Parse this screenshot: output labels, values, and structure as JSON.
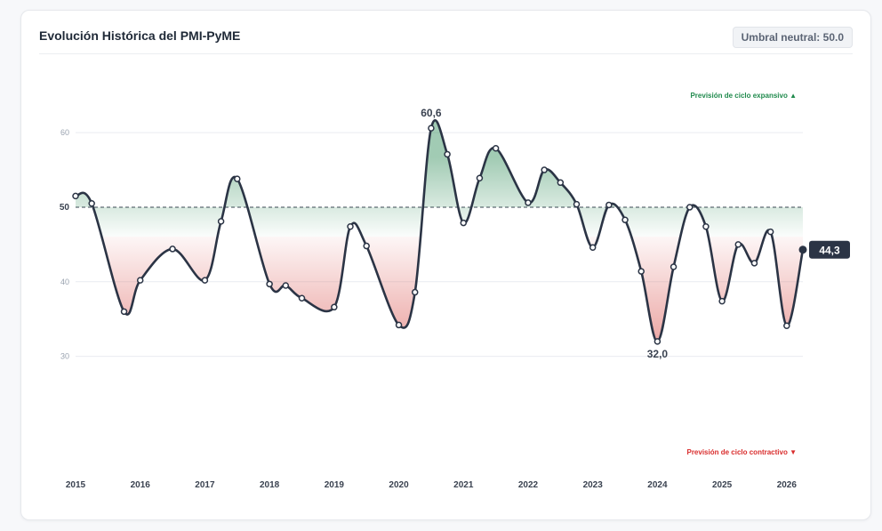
{
  "header": {
    "title": "Evolución Histórica del PMI-PyME",
    "badge": "Umbral neutral: 50.0"
  },
  "annotations": {
    "expansive_note": "Previsión de ciclo expansivo ▲",
    "contractive_note": "Previsión de ciclo contractivo ▼",
    "max_label": "60,6",
    "min_label": "32,0",
    "last_label": "44,3"
  },
  "colors": {
    "line": "#2b3445",
    "positive_fill": "#2e8b57",
    "negative_fill": "#d9534f",
    "expansive_text": "#1f8a4c",
    "contractive_text": "#d92c2c",
    "threshold": "#3a4250"
  },
  "chart_data": {
    "type": "area",
    "title": "Evolución Histórica del PMI-PyME",
    "xlabel": "",
    "ylabel": "",
    "threshold": 50,
    "xlim": [
      2015,
      2026.25
    ],
    "ylim": [
      16,
      76
    ],
    "y_ticks": [
      {
        "value": 60,
        "label": "60"
      },
      {
        "value": 50,
        "label": "50"
      },
      {
        "value": 40,
        "label": "40"
      },
      {
        "value": 30,
        "label": "30"
      }
    ],
    "x_ticks": [
      {
        "value": 2015,
        "label": "2015"
      },
      {
        "value": 2016,
        "label": "2016"
      },
      {
        "value": 2017,
        "label": "2017"
      },
      {
        "value": 2018,
        "label": "2018"
      },
      {
        "value": 2019,
        "label": "2019"
      },
      {
        "value": 2020,
        "label": "2020"
      },
      {
        "value": 2021,
        "label": "2021"
      },
      {
        "value": 2022,
        "label": "2022"
      },
      {
        "value": 2023,
        "label": "2023"
      },
      {
        "value": 2024,
        "label": "2024"
      },
      {
        "value": 2025,
        "label": "2025"
      },
      {
        "value": 2026,
        "label": "2026"
      }
    ],
    "grid": true,
    "points": [
      {
        "x": 2015.0,
        "y": 51.5
      },
      {
        "x": 2015.25,
        "y": 50.5
      },
      {
        "x": 2015.75,
        "y": 36.0
      },
      {
        "x": 2016.0,
        "y": 40.2
      },
      {
        "x": 2016.5,
        "y": 44.4
      },
      {
        "x": 2017.0,
        "y": 40.2
      },
      {
        "x": 2017.25,
        "y": 48.1
      },
      {
        "x": 2017.5,
        "y": 53.8
      },
      {
        "x": 2018.0,
        "y": 39.7
      },
      {
        "x": 2018.25,
        "y": 39.5
      },
      {
        "x": 2018.5,
        "y": 37.8
      },
      {
        "x": 2019.0,
        "y": 36.6
      },
      {
        "x": 2019.25,
        "y": 47.4
      },
      {
        "x": 2019.5,
        "y": 44.8
      },
      {
        "x": 2020.0,
        "y": 34.2
      },
      {
        "x": 2020.25,
        "y": 38.6
      },
      {
        "x": 2020.5,
        "y": 60.6
      },
      {
        "x": 2020.75,
        "y": 57.1
      },
      {
        "x": 2021.0,
        "y": 47.9
      },
      {
        "x": 2021.25,
        "y": 53.9
      },
      {
        "x": 2021.5,
        "y": 57.9
      },
      {
        "x": 2022.0,
        "y": 50.6
      },
      {
        "x": 2022.25,
        "y": 55.0
      },
      {
        "x": 2022.5,
        "y": 53.3
      },
      {
        "x": 2022.75,
        "y": 50.4
      },
      {
        "x": 2023.0,
        "y": 44.6
      },
      {
        "x": 2023.25,
        "y": 50.3
      },
      {
        "x": 2023.5,
        "y": 48.3
      },
      {
        "x": 2023.75,
        "y": 41.4
      },
      {
        "x": 2024.0,
        "y": 32.0
      },
      {
        "x": 2024.25,
        "y": 42.0
      },
      {
        "x": 2024.5,
        "y": 50.0
      },
      {
        "x": 2024.75,
        "y": 47.4
      },
      {
        "x": 2025.0,
        "y": 37.4
      },
      {
        "x": 2025.25,
        "y": 45.0
      },
      {
        "x": 2025.5,
        "y": 42.5
      },
      {
        "x": 2025.75,
        "y": 46.7
      },
      {
        "x": 2026.0,
        "y": 34.1
      },
      {
        "x": 2026.25,
        "y": 44.3
      }
    ]
  }
}
